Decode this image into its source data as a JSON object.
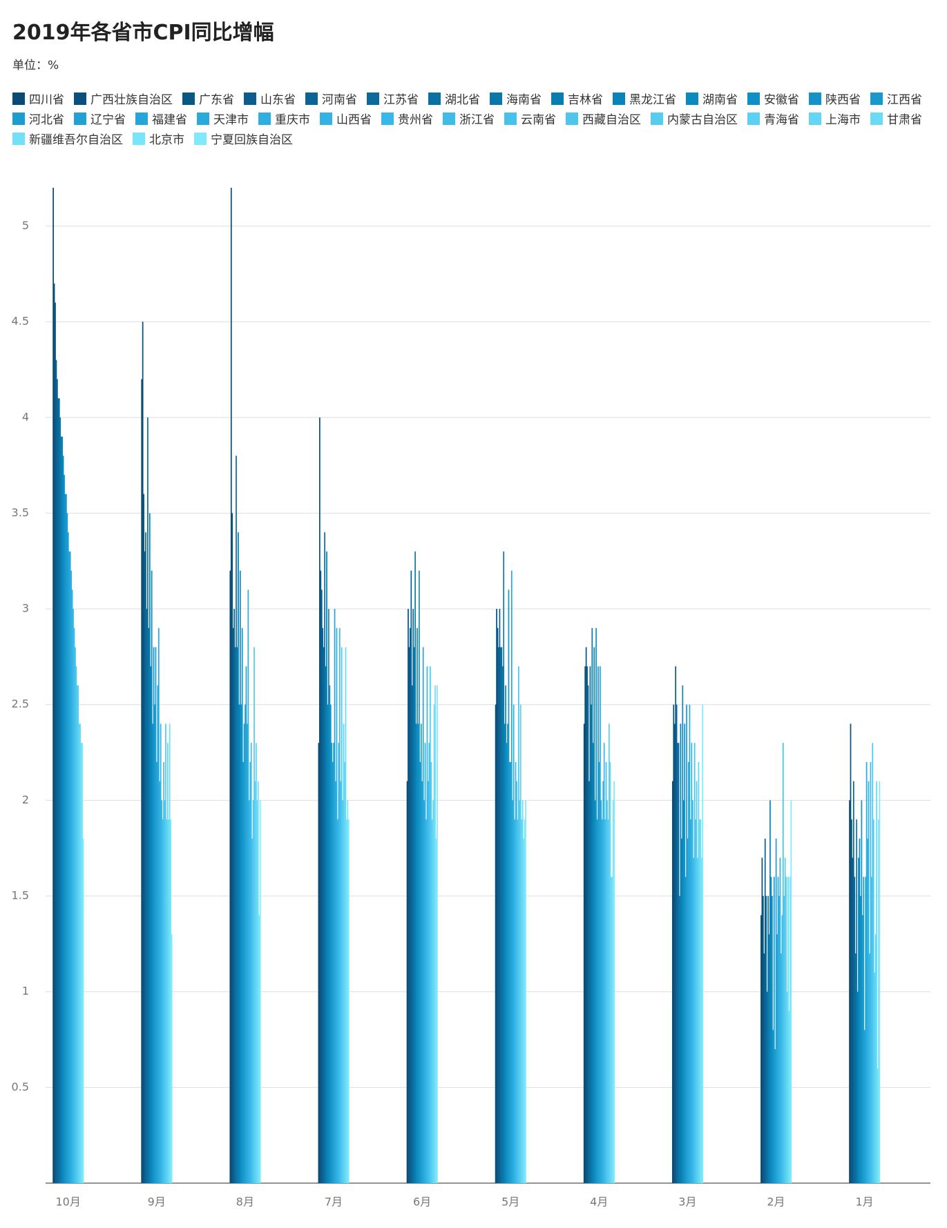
{
  "chart_data": {
    "type": "bar",
    "title": "2019年各省市CPI同比增幅",
    "subtitle": "单位：%",
    "categories": [
      "10月",
      "9月",
      "8月",
      "7月",
      "6月",
      "5月",
      "4月",
      "3月",
      "2月",
      "1月"
    ],
    "ylim": [
      0,
      5.2
    ],
    "yticks": [
      0.5,
      1,
      1.5,
      2,
      2.5,
      3,
      3.5,
      4,
      4.5,
      5
    ],
    "grid": true,
    "series": [
      {
        "name": "四川省",
        "color": "#0b4a75",
        "values": [
          5.2,
          4.2,
          3.2,
          2.3,
          2.1,
          2.5,
          2.4,
          2.1,
          1.4,
          2.0
        ]
      },
      {
        "name": "广西壮族自治区",
        "color": "#0b507c",
        "values": [
          4.7,
          4.5,
          5.2,
          4.0,
          3.0,
          3.0,
          2.7,
          2.5,
          1.7,
          2.4
        ]
      },
      {
        "name": "广东省",
        "color": "#0b5784",
        "values": [
          4.6,
          3.6,
          3.5,
          3.2,
          2.8,
          2.9,
          2.8,
          2.4,
          1.5,
          1.9
        ]
      },
      {
        "name": "山东省",
        "color": "#0b5d8b",
        "values": [
          4.3,
          3.3,
          2.9,
          3.1,
          2.9,
          2.8,
          2.7,
          2.7,
          1.2,
          1.7
        ]
      },
      {
        "name": "河南省",
        "color": "#0b6493",
        "values": [
          4.2,
          3.4,
          3.0,
          2.9,
          3.2,
          3.0,
          2.6,
          2.5,
          1.8,
          2.1
        ]
      },
      {
        "name": "江苏省",
        "color": "#0a6a9a",
        "values": [
          4.1,
          3.0,
          2.8,
          2.8,
          2.6,
          2.8,
          2.1,
          2.3,
          1.5,
          1.6
        ]
      },
      {
        "name": "湖北省",
        "color": "#0a70a1",
        "values": [
          4.1,
          4.0,
          3.8,
          3.4,
          3.0,
          2.8,
          2.7,
          2.3,
          1.0,
          1.2
        ]
      },
      {
        "name": "海南省",
        "color": "#0a77a9",
        "values": [
          4.0,
          2.9,
          2.8,
          2.7,
          2.8,
          2.7,
          2.5,
          1.5,
          1.5,
          1.9
        ]
      },
      {
        "name": "吉林省",
        "color": "#0a7db0",
        "values": [
          3.9,
          3.5,
          3.4,
          3.3,
          3.3,
          3.3,
          2.9,
          2.4,
          1.3,
          1.0
        ]
      },
      {
        "name": "黑龙江省",
        "color": "#0a84b8",
        "values": [
          3.9,
          2.7,
          2.5,
          2.5,
          2.4,
          2.4,
          2.3,
          1.8,
          2.0,
          1.7
        ]
      },
      {
        "name": "湖南省",
        "color": "#0a8abf",
        "values": [
          3.8,
          3.2,
          3.2,
          3.0,
          2.9,
          2.6,
          2.8,
          2.6,
          1.6,
          1.8
        ]
      },
      {
        "name": "安徽省",
        "color": "#0f8fc3",
        "values": [
          3.7,
          2.4,
          2.5,
          2.6,
          2.4,
          2.3,
          2.0,
          2.0,
          1.5,
          1.5
        ]
      },
      {
        "name": "陕西省",
        "color": "#1393c7",
        "values": [
          3.6,
          2.8,
          2.9,
          2.5,
          3.2,
          2.4,
          2.9,
          2.4,
          0.8,
          2.0
        ]
      },
      {
        "name": "江西省",
        "color": "#1898cb",
        "values": [
          3.6,
          2.5,
          2.2,
          2.3,
          2.2,
          3.1,
          1.9,
          1.6,
          1.6,
          1.4
        ]
      },
      {
        "name": "河北省",
        "color": "#1c9ccf",
        "values": [
          3.5,
          2.8,
          2.4,
          2.2,
          2.4,
          2.2,
          2.7,
          2.5,
          0.7,
          1.6
        ]
      },
      {
        "name": "辽宁省",
        "color": "#21a1d4",
        "values": [
          3.4,
          2.2,
          2.5,
          2.3,
          2.1,
          2.2,
          2.2,
          1.8,
          1.8,
          0.8
        ]
      },
      {
        "name": "福建省",
        "color": "#26a6d8",
        "values": [
          3.3,
          2.6,
          2.7,
          3.0,
          2.8,
          3.2,
          2.7,
          2.2,
          1.3,
          1.6
        ]
      },
      {
        "name": "天津市",
        "color": "#2aaadc",
        "values": [
          3.3,
          2.9,
          2.4,
          2.1,
          2.0,
          2.0,
          2.0,
          2.5,
          1.6,
          2.2
        ]
      },
      {
        "name": "重庆市",
        "color": "#2fafe0",
        "values": [
          3.2,
          2.1,
          3.1,
          2.9,
          2.3,
          2.5,
          1.9,
          1.9,
          1.5,
          1.8
        ]
      },
      {
        "name": "山西省",
        "color": "#33b3e4",
        "values": [
          3.1,
          2.4,
          2.0,
          1.9,
          1.9,
          1.9,
          2.1,
          2.3,
          1.7,
          2.1
        ]
      },
      {
        "name": "贵州省",
        "color": "#38b8e8",
        "values": [
          3.0,
          2.0,
          2.2,
          2.3,
          2.7,
          2.2,
          2.3,
          2.0,
          1.2,
          1.2
        ]
      },
      {
        "name": "浙江省",
        "color": "#3fbdea",
        "values": [
          2.9,
          1.9,
          2.3,
          2.9,
          2.1,
          2.1,
          1.9,
          1.7,
          1.4,
          2.2
        ]
      },
      {
        "name": "云南省",
        "color": "#46c2ec",
        "values": [
          2.8,
          2.2,
          1.8,
          2.1,
          2.3,
          1.9,
          2.2,
          2.3,
          2.3,
          1.6
        ]
      },
      {
        "name": "西藏自治区",
        "color": "#4ec7ee",
        "values": [
          2.7,
          2.0,
          2.0,
          2.8,
          2.7,
          2.7,
          2.0,
          1.9,
          1.5,
          2.3
        ]
      },
      {
        "name": "内蒙古自治区",
        "color": "#55ccf0",
        "values": [
          2.6,
          2.4,
          2.8,
          2.0,
          2.2,
          2.0,
          1.9,
          2.1,
          1.7,
          1.9
        ]
      },
      {
        "name": "青海省",
        "color": "#5cd1f2",
        "values": [
          2.6,
          1.9,
          2.1,
          2.4,
          1.9,
          2.5,
          2.4,
          1.7,
          1.6,
          1.1
        ]
      },
      {
        "name": "上海市",
        "color": "#63d6f3",
        "values": [
          2.4,
          2.3,
          2.3,
          2.2,
          2.0,
          1.9,
          2.2,
          2.2,
          1.0,
          1.3
        ]
      },
      {
        "name": "甘肃省",
        "color": "#6adbf5",
        "values": [
          2.4,
          1.9,
          2.0,
          2.8,
          2.5,
          2.0,
          1.6,
          1.9,
          1.6,
          2.1
        ]
      },
      {
        "name": "新疆维吾尔自治区",
        "color": "#72e0f7",
        "values": [
          2.3,
          2.4,
          2.1,
          1.9,
          2.6,
          1.8,
          1.6,
          1.9,
          0.9,
          0.6
        ]
      },
      {
        "name": "北京市",
        "color": "#79e5f9",
        "values": [
          2.3,
          1.9,
          1.4,
          2.0,
          1.8,
          1.9,
          2.0,
          1.7,
          1.6,
          1.9
        ]
      },
      {
        "name": "宁夏回族自治区",
        "color": "#80eafb",
        "values": [
          1.8,
          1.3,
          2.0,
          1.9,
          2.6,
          2.0,
          2.1,
          2.5,
          2.0,
          2.1
        ]
      }
    ]
  }
}
